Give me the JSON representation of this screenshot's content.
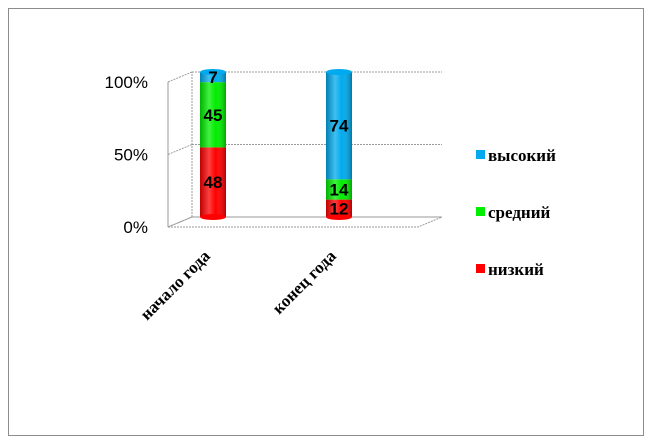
{
  "chart_data": {
    "type": "bar",
    "stacked": true,
    "percent_stacked": true,
    "categories": [
      "начало года",
      "конец года"
    ],
    "series": [
      {
        "name": "низкий",
        "values": [
          48,
          12
        ],
        "color": "#ff0000"
      },
      {
        "name": "средний",
        "values": [
          45,
          14
        ],
        "color": "#00ee00"
      },
      {
        "name": "высокий",
        "values": [
          7,
          74
        ],
        "color": "#00aaee"
      }
    ],
    "y_ticks": [
      "0%",
      "50%",
      "100%"
    ],
    "ylim": [
      0,
      100
    ],
    "grid": true,
    "legend_position": "right"
  }
}
